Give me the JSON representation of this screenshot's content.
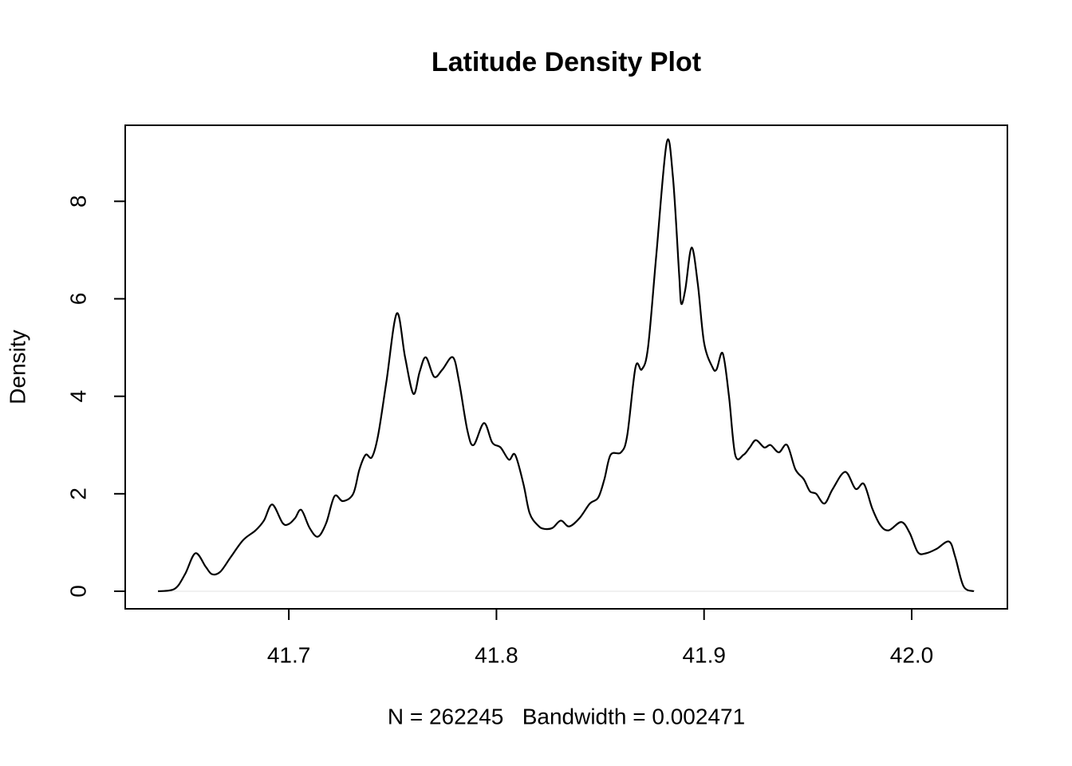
{
  "chart_data": {
    "type": "line",
    "title": "Latitude Density Plot",
    "xlabel": "N = 262245   Bandwidth = 0.002471",
    "ylabel": "Density",
    "x": [
      41.637,
      41.645,
      41.65,
      41.655,
      41.66,
      41.663,
      41.667,
      41.672,
      41.678,
      41.684,
      41.688,
      41.692,
      41.697,
      41.7,
      41.703,
      41.706,
      41.71,
      41.714,
      41.718,
      41.722,
      41.726,
      41.731,
      41.734,
      41.737,
      41.74,
      41.743,
      41.747,
      41.752,
      41.756,
      41.76,
      41.763,
      41.766,
      41.77,
      41.774,
      41.779,
      41.782,
      41.786,
      41.789,
      41.794,
      41.798,
      41.802,
      41.806,
      41.809,
      41.813,
      41.816,
      41.82,
      41.823,
      41.827,
      41.831,
      41.835,
      41.84,
      41.845,
      41.849,
      41.852,
      41.855,
      41.86,
      41.863,
      41.867,
      41.87,
      41.873,
      41.877,
      41.882,
      41.885,
      41.888,
      41.889,
      41.891,
      41.894,
      41.897,
      41.9,
      41.904,
      41.906,
      41.909,
      41.912,
      41.915,
      41.919,
      41.922,
      41.925,
      41.929,
      41.932,
      41.936,
      41.94,
      41.944,
      41.948,
      41.951,
      41.954,
      41.958,
      41.962,
      41.968,
      41.973,
      41.977,
      41.981,
      41.985,
      41.989,
      41.995,
      41.999,
      42.003,
      42.007,
      42.012,
      42.018,
      42.021,
      42.025,
      42.03
    ],
    "series": [
      {
        "color": "#000000",
        "values": [
          0,
          0.05,
          0.35,
          0.78,
          0.5,
          0.35,
          0.4,
          0.7,
          1.05,
          1.25,
          1.45,
          1.78,
          1.4,
          1.38,
          1.5,
          1.67,
          1.3,
          1.12,
          1.4,
          1.95,
          1.85,
          2.0,
          2.5,
          2.8,
          2.75,
          3.2,
          4.3,
          5.7,
          4.8,
          4.05,
          4.5,
          4.8,
          4.4,
          4.55,
          4.8,
          4.3,
          3.3,
          3.0,
          3.45,
          3.05,
          2.95,
          2.7,
          2.8,
          2.2,
          1.6,
          1.35,
          1.28,
          1.3,
          1.45,
          1.33,
          1.5,
          1.8,
          1.92,
          2.3,
          2.8,
          2.85,
          3.2,
          4.6,
          4.55,
          5.0,
          6.9,
          9.2,
          8.5,
          6.5,
          5.9,
          6.2,
          7.05,
          6.3,
          5.1,
          4.6,
          4.55,
          4.88,
          4.0,
          2.8,
          2.8,
          2.95,
          3.1,
          2.95,
          3.0,
          2.85,
          3.0,
          2.5,
          2.3,
          2.05,
          2.0,
          1.8,
          2.1,
          2.45,
          2.1,
          2.2,
          1.7,
          1.35,
          1.25,
          1.42,
          1.2,
          0.8,
          0.78,
          0.87,
          1.02,
          0.7,
          0.1,
          0
        ]
      }
    ],
    "xlim": [
      41.6212,
      42.0461
    ],
    "ylim": [
      -0.36,
      9.56
    ],
    "xticks": [
      41.7,
      41.8,
      41.9,
      {
        "value": 42.0,
        "label": "42.0"
      }
    ],
    "yticks": [
      0,
      2,
      4,
      6,
      8
    ]
  }
}
